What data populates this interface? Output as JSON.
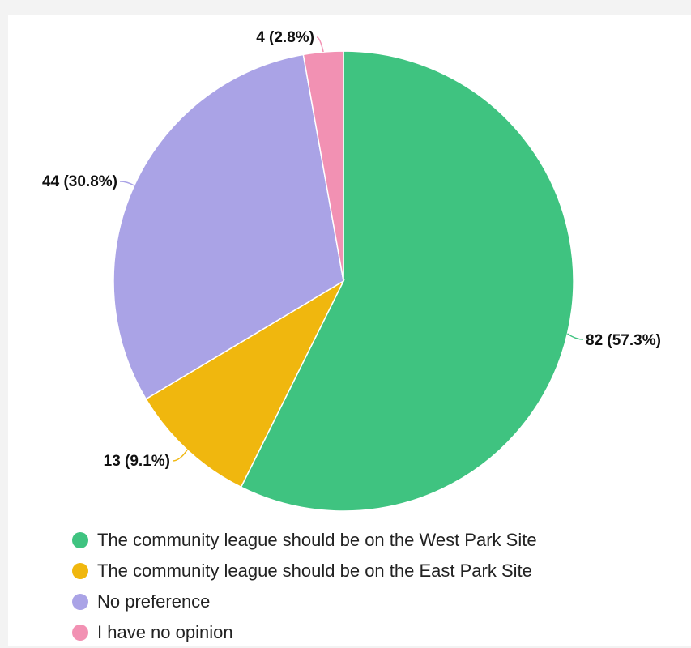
{
  "chart_data": {
    "type": "pie",
    "title": "",
    "legend_position": "bottom-left",
    "slices": [
      {
        "name": "The community league should be on the West Park Site",
        "value": 82,
        "percent": 57.3,
        "label": "82 (57.3%)",
        "color": "#3fc380"
      },
      {
        "name": "The community league should be on the East Park Site",
        "value": 13,
        "percent": 9.1,
        "label": "13 (9.1%)",
        "color": "#f0b70e"
      },
      {
        "name": "No preference",
        "value": 44,
        "percent": 30.8,
        "label": "44 (30.8%)",
        "color": "#aaa3e6"
      },
      {
        "name": "I have no opinion",
        "value": 4,
        "percent": 2.8,
        "label": "4 (2.8%)",
        "color": "#f291b3"
      }
    ]
  }
}
